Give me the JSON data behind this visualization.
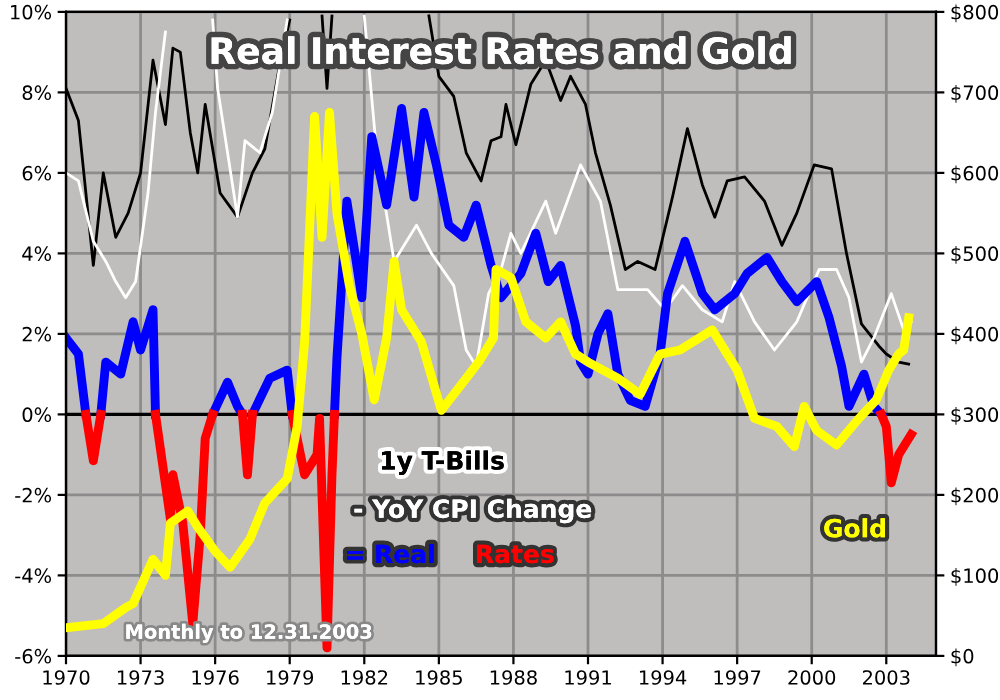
{
  "chart_data": {
    "type": "line",
    "title": "Real Interest Rates and Gold",
    "xlim": [
      1970,
      2005
    ],
    "xticks": [
      {
        "value": 1970,
        "label": "1970"
      },
      {
        "value": 1973,
        "label": "1973"
      },
      {
        "value": 1976,
        "label": "1976"
      },
      {
        "value": 1979,
        "label": "1979"
      },
      {
        "value": 1982,
        "label": "1982"
      },
      {
        "value": 1985,
        "label": "1985"
      },
      {
        "value": 1988,
        "label": "1988"
      },
      {
        "value": 1991,
        "label": "1991"
      },
      {
        "value": 1994,
        "label": "1994"
      },
      {
        "value": 1997,
        "label": "1997"
      },
      {
        "value": 2000,
        "label": "2000"
      },
      {
        "value": 2003,
        "label": "2003"
      }
    ],
    "ylim": [
      -6,
      10
    ],
    "yticks": [
      {
        "value": -6,
        "label": "-6%"
      },
      {
        "value": -4,
        "label": "-4%"
      },
      {
        "value": -2,
        "label": "-2%"
      },
      {
        "value": 0,
        "label": "0%"
      },
      {
        "value": 2,
        "label": "2%"
      },
      {
        "value": 4,
        "label": "4%"
      },
      {
        "value": 6,
        "label": "6%"
      },
      {
        "value": 8,
        "label": "8%"
      },
      {
        "value": 10,
        "label": "10%"
      }
    ],
    "y2lim": [
      0,
      800
    ],
    "y2ticks": [
      {
        "value": 0,
        "label": "$0"
      },
      {
        "value": 100,
        "label": "$100"
      },
      {
        "value": 200,
        "label": "$200"
      },
      {
        "value": 300,
        "label": "$300"
      },
      {
        "value": 400,
        "label": "$400"
      },
      {
        "value": 500,
        "label": "$500"
      },
      {
        "value": 600,
        "label": "$600"
      },
      {
        "value": 700,
        "label": "$700"
      },
      {
        "value": 800,
        "label": "$800"
      }
    ],
    "grid": true,
    "legend": "bottom",
    "marker": "none",
    "line_style": "solid",
    "ref_lines": [
      {
        "axis": "y",
        "value": 0,
        "color": "#000000"
      }
    ],
    "annotations": [
      "Monthly to 12.31.2003"
    ],
    "series": [
      {
        "name": "1y T-Bills",
        "color": "#000000",
        "x": [
          1970.0,
          1970.5,
          1971.1,
          1971.5,
          1972.0,
          1972.5,
          1973.0,
          1973.5,
          1974.0,
          1974.3,
          1974.6,
          1975.0,
          1975.3,
          1975.6,
          1976.2,
          1976.9,
          1977.5,
          1978.0,
          1978.6,
          1979.0,
          1979.5,
          1980.3,
          1980.5,
          1980.7,
          1982.0,
          1984.6,
          1985.0,
          1985.6,
          1986.1,
          1986.7,
          1987.1,
          1987.5,
          1987.7,
          1988.1,
          1988.7,
          1989.3,
          1989.9,
          1990.3,
          1990.9,
          1991.3,
          1991.9,
          1992.5,
          1993.0,
          1993.7,
          1994.4,
          1995.0,
          1995.6,
          1996.1,
          1996.6,
          1997.3,
          1998.1,
          1998.8,
          1999.4,
          2000.1,
          2000.8,
          2001.4,
          2002.0,
          2002.7,
          2003.0,
          2003.5,
          2003.9
        ],
        "values": [
          8.1,
          7.3,
          3.7,
          6.0,
          4.4,
          5.0,
          6.0,
          8.8,
          7.2,
          9.1,
          9.0,
          7.0,
          6.0,
          7.7,
          5.5,
          4.9,
          6.0,
          6.6,
          8.7,
          9.8,
          null,
          9.9,
          8.1,
          9.9,
          null,
          9.9,
          8.4,
          7.9,
          6.5,
          5.8,
          6.8,
          6.9,
          7.7,
          6.7,
          8.2,
          8.8,
          7.8,
          8.4,
          7.7,
          6.5,
          5.2,
          3.6,
          3.8,
          3.6,
          5.4,
          7.1,
          5.7,
          4.9,
          5.8,
          5.9,
          5.3,
          4.2,
          5.0,
          6.2,
          6.1,
          4.0,
          2.25,
          1.7,
          1.5,
          1.3,
          1.25
        ]
      },
      {
        "name": "- YoY CPI Change",
        "color": "#ffffff",
        "x": [
          1970.0,
          1970.5,
          1971.1,
          1971.6,
          1972.0,
          1972.4,
          1972.8,
          1973.3,
          1973.6,
          1974.0,
          1975.0,
          1975.9,
          1976.1,
          1976.5,
          1976.9,
          1977.2,
          1977.8,
          1978.3,
          1978.9,
          1980.0,
          1982.0,
          1982.5,
          1983.2,
          1984.1,
          1984.7,
          1985.6,
          1986.1,
          1986.5,
          1987.0,
          1987.5,
          1987.9,
          1988.3,
          1989.3,
          1989.7,
          1990.7,
          1991.5,
          1992.2,
          1993.4,
          1994.1,
          1994.8,
          1995.6,
          1996.4,
          1996.9,
          1997.7,
          1998.5,
          1999.4,
          2000.3,
          2001.0,
          2001.5,
          2002.0,
          2002.5,
          2003.2,
          2003.7,
          2004.0
        ],
        "values": [
          6.0,
          5.8,
          4.3,
          3.8,
          3.3,
          2.9,
          3.3,
          5.5,
          7.5,
          9.5,
          null,
          9.8,
          8.1,
          6.5,
          4.9,
          6.8,
          6.5,
          7.5,
          9.8,
          null,
          9.9,
          6.5,
          3.8,
          4.7,
          4.0,
          3.2,
          1.6,
          1.2,
          3.0,
          3.6,
          4.5,
          4.0,
          5.3,
          4.5,
          6.2,
          5.3,
          3.1,
          3.1,
          2.6,
          3.2,
          2.6,
          2.3,
          3.3,
          2.3,
          1.6,
          2.3,
          3.6,
          3.6,
          2.9,
          1.3,
          1.9,
          3.0,
          2.1,
          2.3
        ]
      },
      {
        "name": "= Real",
        "color": "#0000ff",
        "x": [
          1970.0,
          1970.5,
          1970.8,
          1970.9,
          1971.4,
          1971.6,
          1972.2,
          1972.7,
          1973.0,
          1973.5,
          1973.6,
          1973.7,
          1975.9,
          1976.5,
          1976.9,
          1977.1,
          1977.2,
          1977.5,
          1978.2,
          1978.9,
          1979.1,
          1979.2,
          1980.8,
          1980.9,
          1981.3,
          1981.9,
          1982.3,
          1982.9,
          1983.5,
          1984.0,
          1984.4,
          1984.9,
          1985.4,
          1986.0,
          1986.5,
          1987.1,
          1987.5,
          1988.3,
          1988.9,
          1989.4,
          1989.9,
          1990.5,
          1990.7,
          1991.0,
          1991.4,
          1991.8,
          1992.2,
          1992.7,
          1993.3,
          1993.9,
          1994.2,
          1994.9,
          1995.6,
          1996.1,
          1996.9,
          1997.4,
          1998.2,
          1998.8,
          1999.4,
          2000.2,
          2000.7,
          2001.2,
          2001.5,
          2002.1,
          2002.5,
          2002.8
        ],
        "values": [
          1.9,
          1.5,
          0,
          null,
          0,
          1.3,
          1.0,
          2.3,
          1.6,
          2.6,
          0,
          null,
          0,
          0.8,
          0.2,
          0,
          null,
          0,
          0.9,
          1.1,
          0,
          null,
          0,
          1.4,
          5.3,
          2.9,
          6.9,
          5.2,
          7.6,
          5.4,
          7.5,
          6.2,
          4.7,
          4.4,
          5.2,
          3.7,
          2.9,
          3.5,
          4.5,
          3.3,
          3.7,
          2.2,
          1.3,
          1.0,
          2.0,
          2.5,
          1.0,
          0.35,
          0.2,
          1.5,
          3.0,
          4.3,
          3.0,
          2.6,
          3.0,
          3.5,
          3.9,
          3.3,
          2.8,
          3.3,
          2.4,
          1.2,
          0.2,
          1.0,
          0.2,
          0
        ]
      },
      {
        "name": "Rates",
        "color": "#ff0000",
        "x": [
          1970.8,
          1971.1,
          1971.4,
          1971.5,
          1973.6,
          1974.2,
          1974.3,
          1974.7,
          1975.1,
          1975.4,
          1975.6,
          1975.9,
          1976.0,
          1977.1,
          1977.3,
          1977.5,
          1977.6,
          1979.1,
          1979.6,
          1980.1,
          1980.2,
          1980.5,
          1980.7,
          1980.8,
          1980.9,
          2002.8,
          2003.0,
          2003.2,
          2003.5,
          2004.0
        ],
        "values": [
          0,
          -1.15,
          0,
          null,
          0,
          -2.6,
          -1.5,
          -2.7,
          -5.2,
          -3.0,
          -0.6,
          0,
          null,
          0,
          -1.5,
          0,
          null,
          0,
          -1.5,
          -1.0,
          -0.1,
          -5.8,
          -1.5,
          0,
          null,
          0,
          -0.3,
          -1.7,
          -1.0,
          -0.5
        ]
      },
      {
        "name": "Gold",
        "color": "#ffff00",
        "axis": "y2",
        "x": [
          1970.0,
          1971.5,
          1972.4,
          1972.7,
          1973.5,
          1974.0,
          1974.2,
          1974.9,
          1975.3,
          1976.0,
          1976.6,
          1977.4,
          1978.0,
          1978.9,
          1979.3,
          1979.6,
          1980.0,
          1980.3,
          1980.6,
          1980.9,
          1981.4,
          1981.9,
          1982.4,
          1982.9,
          1983.2,
          1983.5,
          1984.3,
          1985.1,
          1986.1,
          1986.6,
          1987.2,
          1987.3,
          1987.9,
          1988.5,
          1989.3,
          1989.9,
          1990.5,
          1991.0,
          1992.2,
          1993.1,
          1993.9,
          1994.7,
          1996.0,
          1997.0,
          1997.7,
          1998.6,
          1999.3,
          1999.7,
          2000.2,
          2001.0,
          2001.9,
          2002.6,
          2003.1,
          2003.5,
          2003.7,
          2003.9
        ],
        "values": [
          35,
          40,
          60,
          65,
          120,
          100,
          165,
          180,
          160,
          130,
          110,
          145,
          190,
          220,
          285,
          390,
          670,
          520,
          675,
          550,
          460,
          400,
          318,
          395,
          490,
          430,
          390,
          305,
          345,
          365,
          395,
          480,
          470,
          415,
          395,
          415,
          375,
          365,
          345,
          325,
          375,
          380,
          405,
          355,
          295,
          285,
          260,
          310,
          280,
          262,
          295,
          318,
          355,
          375,
          380,
          420
        ]
      }
    ]
  }
}
